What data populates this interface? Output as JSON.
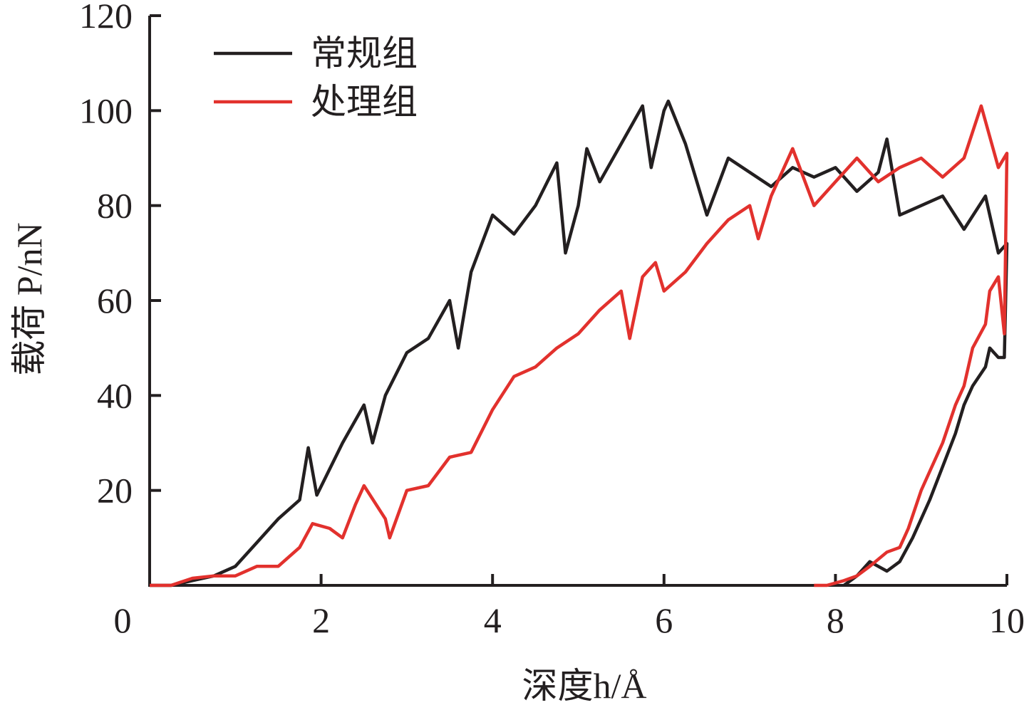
{
  "chart_data": {
    "type": "line",
    "x_label": "深度h/Å",
    "y_label": "载荷 P/nN",
    "xlim": [
      0,
      10
    ],
    "ylim": [
      0,
      120
    ],
    "xticks": [
      0,
      2,
      4,
      6,
      8,
      10
    ],
    "yticks": [
      20,
      40,
      60,
      80,
      100,
      120
    ],
    "grid": false,
    "legend": "upper left",
    "series": [
      {
        "name": "常规组",
        "color": "#231f20",
        "x": [
          0,
          0.25,
          0.5,
          0.75,
          1.0,
          1.25,
          1.5,
          1.75,
          1.85,
          1.95,
          2.25,
          2.5,
          2.6,
          2.75,
          3.0,
          3.25,
          3.5,
          3.6,
          3.75,
          4.0,
          4.25,
          4.5,
          4.75,
          4.85,
          5.0,
          5.1,
          5.25,
          5.5,
          5.75,
          5.85,
          6.0,
          6.05,
          6.25,
          6.5,
          6.75,
          7.0,
          7.25,
          7.5,
          7.75,
          8.0,
          8.25,
          8.5,
          8.6,
          8.75,
          9.0,
          9.25,
          9.5,
          9.75,
          9.9,
          10.0,
          9.97,
          9.9,
          9.8,
          9.75,
          9.6,
          9.5,
          9.4,
          9.25,
          9.1,
          9.0,
          8.9,
          8.75,
          8.6,
          8.5,
          8.4,
          8.25,
          8.1
        ],
        "values": [
          0,
          0,
          1,
          2,
          4,
          9,
          14,
          18,
          29,
          19,
          30,
          38,
          30,
          40,
          49,
          52,
          60,
          50,
          66,
          78,
          74,
          80,
          89,
          70,
          80,
          92,
          85,
          93,
          101,
          88,
          100,
          102,
          93,
          78,
          90,
          87,
          84,
          88,
          86,
          88,
          83,
          87,
          94,
          78,
          80,
          82,
          75,
          82,
          70,
          72,
          48,
          48,
          50,
          46,
          42,
          38,
          32,
          25,
          18,
          14,
          10,
          5,
          3,
          4,
          5,
          2,
          0
        ]
      },
      {
        "name": "处理组",
        "color": "#e2312d",
        "x": [
          0,
          0.25,
          0.5,
          0.75,
          1.0,
          1.25,
          1.5,
          1.75,
          1.9,
          2.1,
          2.25,
          2.4,
          2.5,
          2.75,
          2.8,
          3.0,
          3.25,
          3.5,
          3.75,
          4.0,
          4.25,
          4.5,
          4.75,
          5.0,
          5.25,
          5.5,
          5.6,
          5.75,
          5.9,
          6.0,
          6.25,
          6.5,
          6.75,
          7.0,
          7.1,
          7.25,
          7.5,
          7.75,
          8.0,
          8.25,
          8.5,
          8.75,
          9.0,
          9.25,
          9.5,
          9.7,
          9.9,
          10.0,
          9.97,
          9.9,
          9.8,
          9.75,
          9.6,
          9.5,
          9.4,
          9.25,
          9.1,
          9.0,
          8.85,
          8.75,
          8.6,
          8.4,
          8.25,
          8.1,
          7.9,
          7.75
        ],
        "values": [
          0,
          0,
          1.5,
          2,
          2,
          4,
          4,
          8,
          13,
          12,
          10,
          17,
          21,
          14,
          10,
          20,
          21,
          27,
          28,
          37,
          44,
          46,
          50,
          53,
          58,
          62,
          52,
          65,
          68,
          62,
          66,
          72,
          77,
          80,
          73,
          82,
          92,
          80,
          85,
          90,
          85,
          88,
          90,
          86,
          90,
          101,
          88,
          91,
          53,
          65,
          62,
          55,
          50,
          42,
          38,
          30,
          24,
          20,
          12,
          8,
          7,
          4,
          2,
          1,
          0,
          0
        ]
      }
    ]
  }
}
